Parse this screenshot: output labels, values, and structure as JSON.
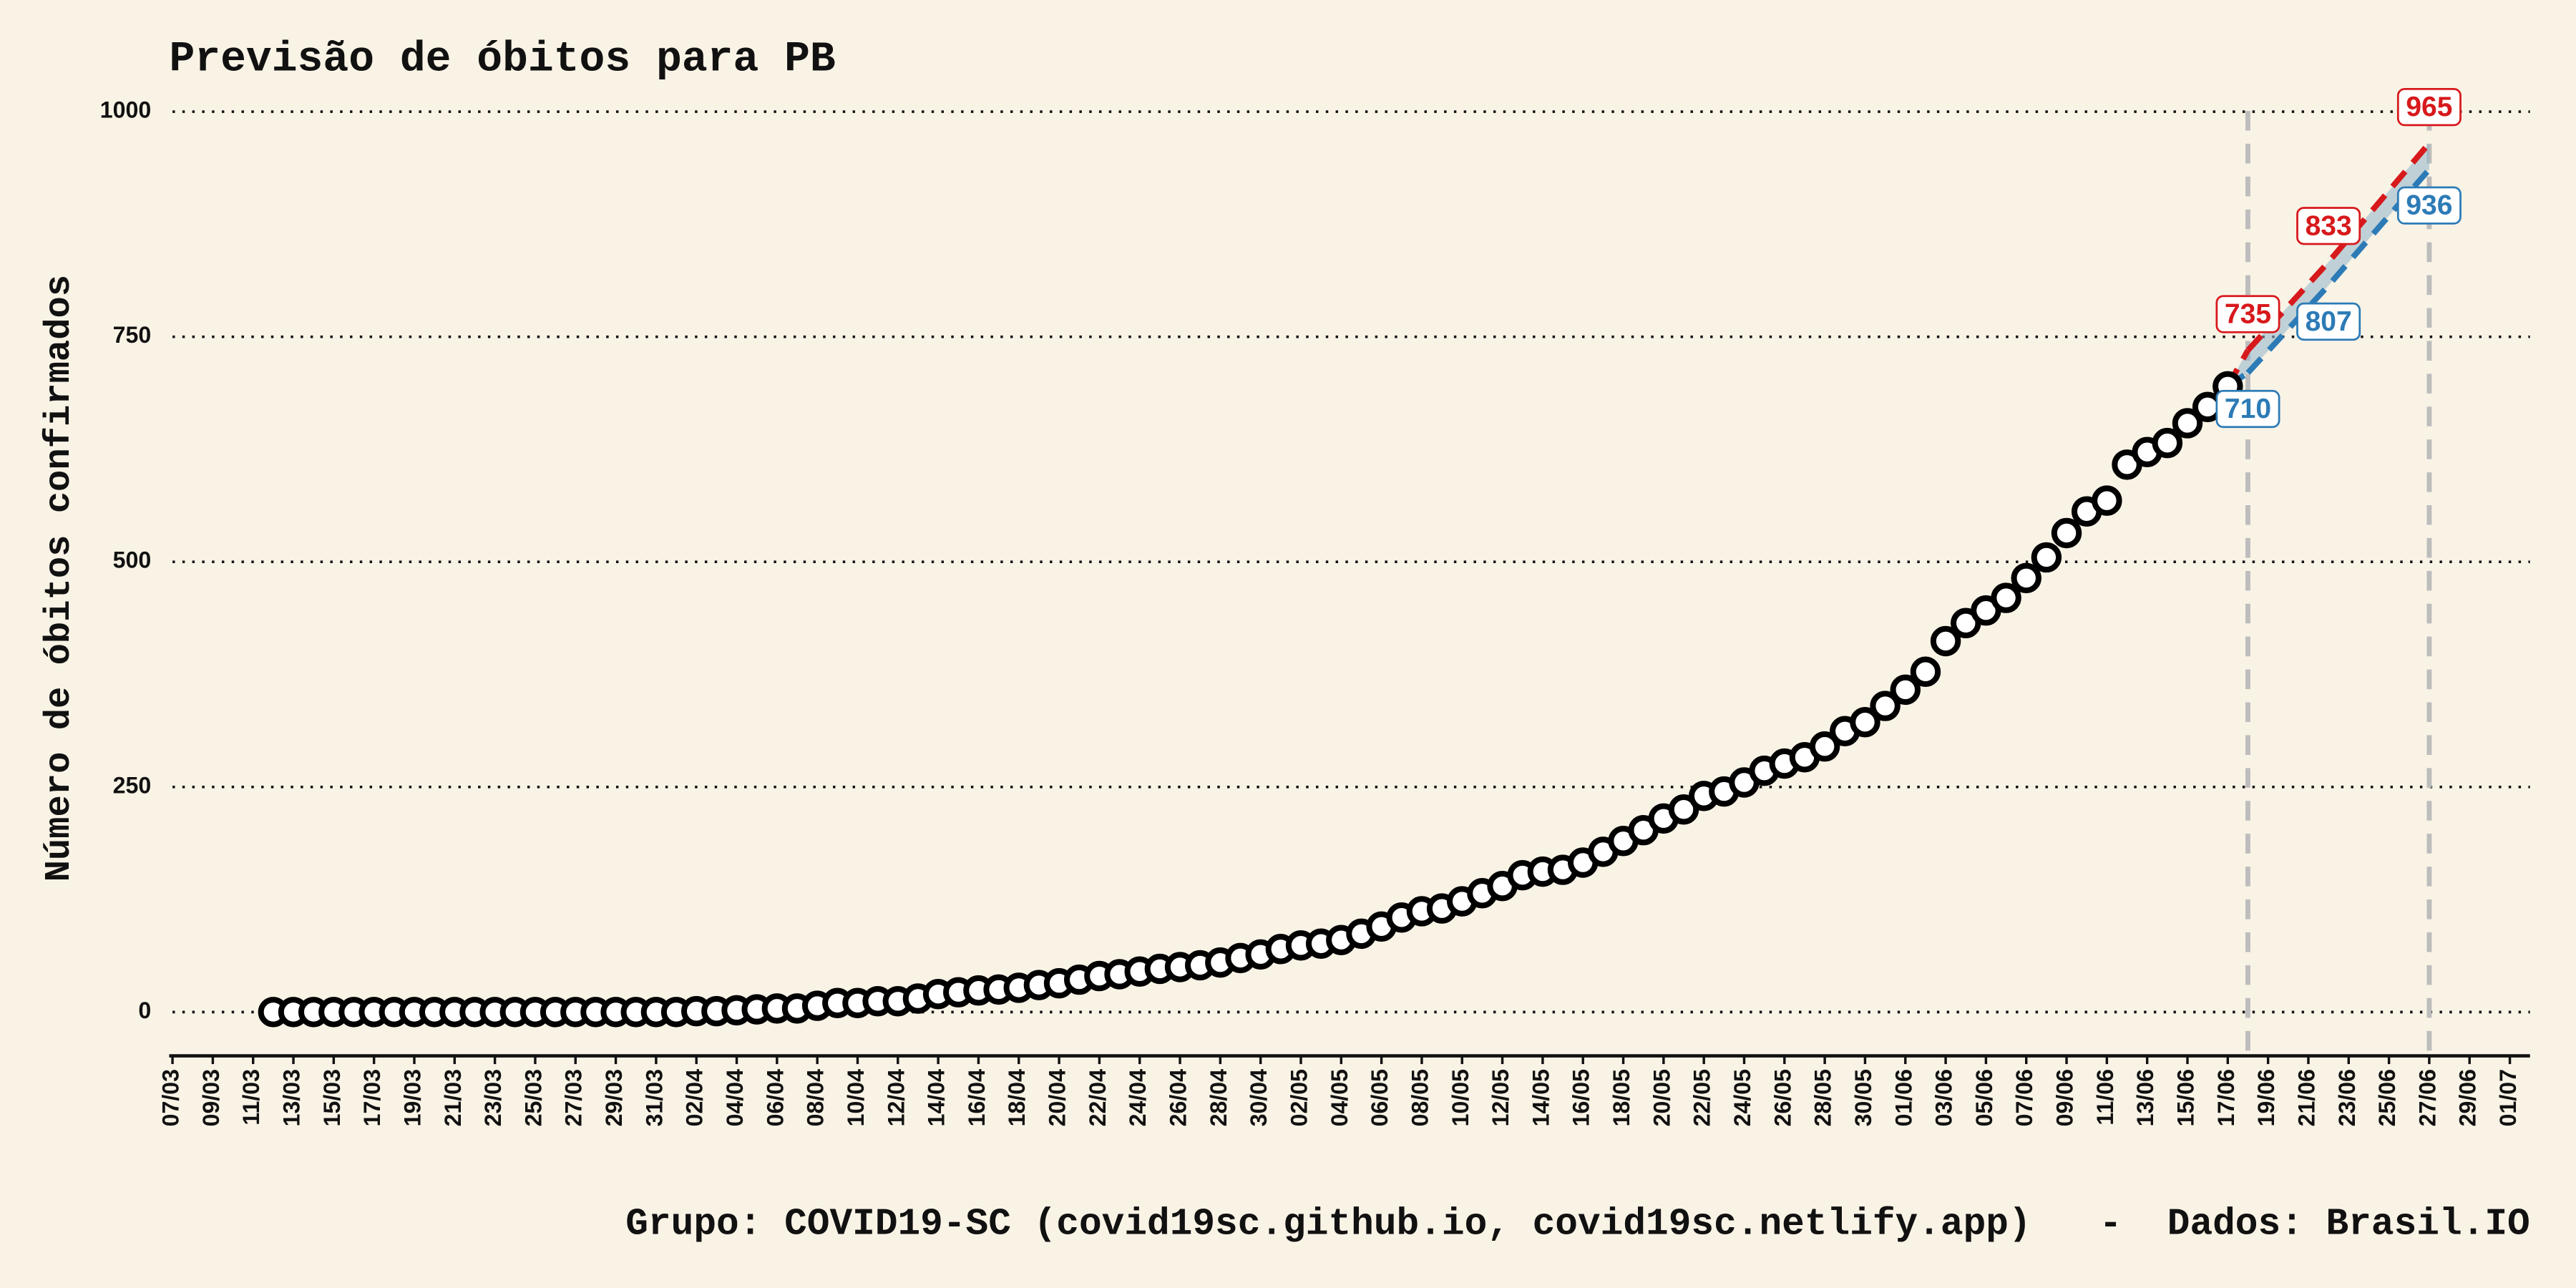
{
  "chart_data": {
    "type": "line",
    "title": "Previsão de óbitos para PB",
    "y_label": "Número de óbitos confirmados",
    "caption": "Grupo: COVID19-SC (covid19sc.github.io, covid19sc.netlify.app)   -  Dados: Brasil.IO",
    "xlim": [
      "07/03",
      "02/07"
    ],
    "ylim": [
      -45,
      1010
    ],
    "yticks": [
      0,
      250,
      500,
      750,
      1000
    ],
    "xticks": [
      "07/03",
      "09/03",
      "11/03",
      "13/03",
      "15/03",
      "17/03",
      "19/03",
      "21/03",
      "23/03",
      "25/03",
      "27/03",
      "29/03",
      "31/03",
      "02/04",
      "04/04",
      "06/04",
      "08/04",
      "10/04",
      "12/04",
      "14/04",
      "16/04",
      "18/04",
      "20/04",
      "22/04",
      "24/04",
      "26/04",
      "28/04",
      "30/04",
      "02/05",
      "04/05",
      "06/05",
      "08/05",
      "10/05",
      "12/05",
      "14/05",
      "16/05",
      "18/05",
      "20/05",
      "22/05",
      "24/05",
      "26/05",
      "28/05",
      "30/05",
      "01/06",
      "03/06",
      "05/06",
      "07/06",
      "09/06",
      "11/06",
      "13/06",
      "15/06",
      "17/06",
      "19/06",
      "21/06",
      "23/06",
      "25/06",
      "27/06",
      "29/06",
      "01/07"
    ],
    "grid": true,
    "vlines": [
      "18/06",
      "27/06"
    ],
    "observed": {
      "color": "#000000",
      "x": [
        "12/03",
        "13/03",
        "14/03",
        "15/03",
        "16/03",
        "17/03",
        "18/03",
        "19/03",
        "20/03",
        "21/03",
        "22/03",
        "23/03",
        "24/03",
        "25/03",
        "26/03",
        "27/03",
        "28/03",
        "29/03",
        "30/03",
        "31/03",
        "01/04",
        "02/04",
        "03/04",
        "04/04",
        "05/04",
        "06/04",
        "07/04",
        "08/04",
        "09/04",
        "10/04",
        "11/04",
        "12/04",
        "13/04",
        "14/04",
        "15/04",
        "16/04",
        "17/04",
        "18/04",
        "19/04",
        "20/04",
        "21/04",
        "22/04",
        "23/04",
        "24/04",
        "25/04",
        "26/04",
        "27/04",
        "28/04",
        "29/04",
        "30/04",
        "01/05",
        "02/05",
        "03/05",
        "04/05",
        "05/05",
        "06/05",
        "07/05",
        "08/05",
        "09/05",
        "10/05",
        "11/05",
        "12/05",
        "13/05",
        "14/05",
        "15/05",
        "16/05",
        "17/05",
        "18/05",
        "19/05",
        "20/05",
        "21/05",
        "22/05",
        "23/05",
        "24/05",
        "25/05",
        "26/05",
        "27/05",
        "28/05",
        "29/05",
        "30/05",
        "31/05",
        "01/06",
        "02/06",
        "03/06",
        "04/06",
        "05/06",
        "06/06",
        "07/06",
        "08/06",
        "09/06",
        "10/06",
        "11/06",
        "12/06",
        "13/06",
        "14/06",
        "15/06",
        "16/06",
        "17/06"
      ],
      "values": [
        0,
        0,
        0,
        0,
        0,
        0,
        0,
        0,
        0,
        0,
        0,
        0,
        0,
        0,
        0,
        0,
        0,
        0,
        0,
        0,
        0,
        1,
        1,
        2,
        3,
        4,
        4,
        7,
        10,
        10,
        12,
        12,
        15,
        20,
        22,
        24,
        25,
        27,
        30,
        32,
        36,
        40,
        42,
        45,
        48,
        50,
        52,
        55,
        60,
        64,
        70,
        74,
        76,
        80,
        87,
        95,
        105,
        112,
        115,
        123,
        132,
        140,
        152,
        156,
        158,
        166,
        178,
        190,
        202,
        215,
        225,
        240,
        245,
        255,
        268,
        276,
        283,
        295,
        312,
        322,
        340,
        358,
        378,
        412,
        432,
        446,
        460,
        482,
        505,
        532,
        556,
        568,
        608,
        622,
        632,
        654,
        672,
        695
      ]
    },
    "series": [
      {
        "color": "#d7191c",
        "x": [
          "18/06",
          "22/06",
          "27/06"
        ],
        "values": [
          735,
          833,
          965
        ]
      },
      {
        "color": "#2c7bb6",
        "x": [
          "18/06",
          "22/06",
          "27/06"
        ],
        "values": [
          710,
          807,
          936
        ]
      }
    ]
  }
}
